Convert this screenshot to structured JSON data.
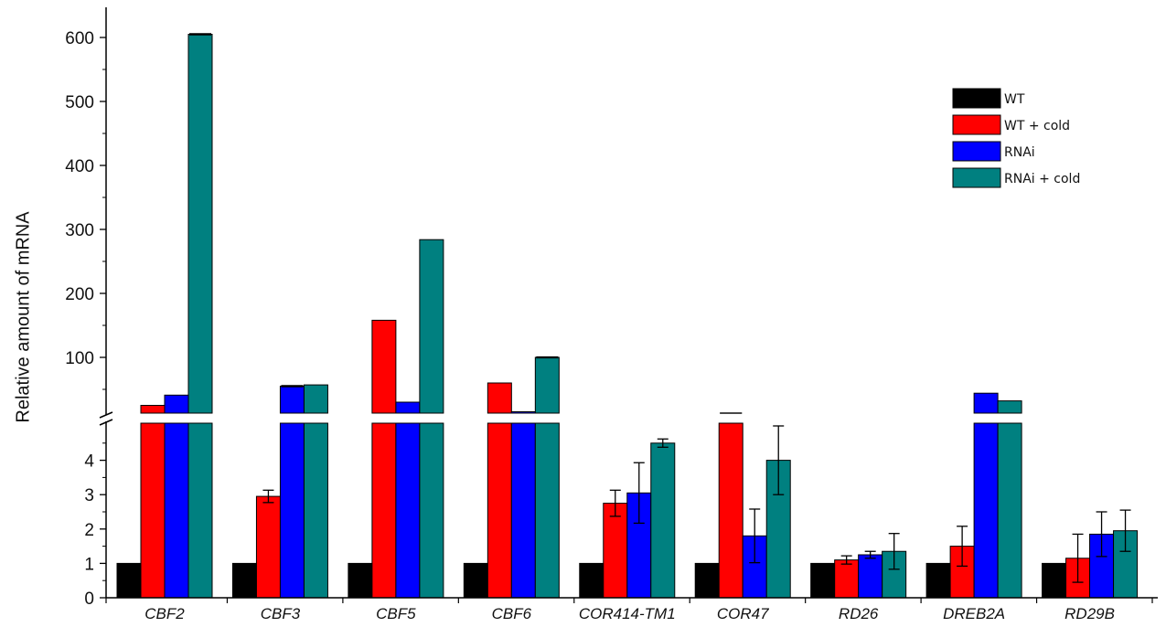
{
  "chart_data": {
    "type": "bar",
    "ylabel": "Relative amount of mRNA",
    "xlabel": "",
    "title": "",
    "axis_break": {
      "lower_range": [
        0,
        5
      ],
      "upper_range": [
        10,
        650
      ]
    },
    "lower_ticks": [
      0,
      1,
      2,
      3,
      4
    ],
    "upper_ticks": [
      100,
      200,
      300,
      400,
      500,
      600
    ],
    "categories": [
      "CBF2",
      "CBF3",
      "CBF5",
      "CBF6",
      "COR414-TM1",
      "COR47",
      "RD26",
      "DREB2A",
      "RD29B"
    ],
    "series": [
      {
        "name": "WT",
        "color": "#000000",
        "values": [
          1,
          1,
          1,
          1,
          1,
          1,
          1,
          1,
          1
        ],
        "errors": [
          0,
          0,
          0,
          0,
          0,
          0,
          0,
          0,
          0
        ]
      },
      {
        "name": "WT + cold",
        "color": "#ff0000",
        "values": [
          25,
          2.95,
          158,
          60,
          2.75,
          11,
          1.1,
          1.5,
          1.15
        ],
        "errors": [
          0,
          0.18,
          0,
          0,
          0.38,
          0.7,
          0.12,
          0.58,
          0.7
        ]
      },
      {
        "name": "RNAi",
        "color": "#0000ff",
        "values": [
          41,
          55,
          30,
          15,
          3.05,
          1.8,
          1.25,
          44,
          1.85
        ],
        "errors": [
          0,
          0.8,
          0,
          0,
          0.88,
          0.78,
          0.1,
          0,
          0.65
        ]
      },
      {
        "name": "RNAi + cold",
        "color": "#008080",
        "values": [
          605,
          57,
          284,
          100,
          4.5,
          4.0,
          1.35,
          32,
          1.95
        ],
        "errors": [
          0.8,
          0,
          0,
          0.6,
          0.12,
          1.0,
          0.52,
          0,
          0.6
        ]
      }
    ],
    "legend": {
      "position": "top-right"
    }
  }
}
